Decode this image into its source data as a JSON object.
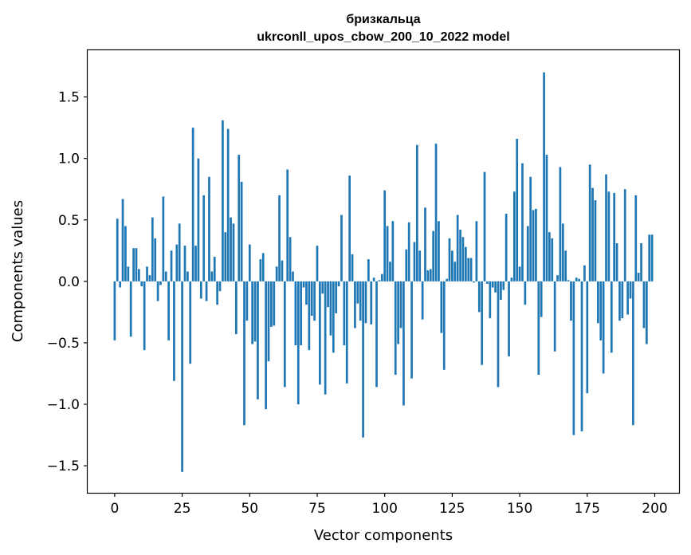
{
  "chart_data": {
    "type": "bar",
    "title_line1": "бризкальца",
    "title_line2": "ukrconll_upos_cbow_200_10_2022 model",
    "xlabel": "Vector components",
    "ylabel": "Components values",
    "xlim": [
      -10,
      209
    ],
    "ylim": [
      -1.72,
      1.88
    ],
    "xticks": [
      0,
      25,
      50,
      75,
      100,
      125,
      150,
      175,
      200
    ],
    "xtick_labels": [
      "0",
      "25",
      "50",
      "75",
      "100",
      "125",
      "150",
      "175",
      "200"
    ],
    "yticks": [
      -1.5,
      -1.0,
      -0.5,
      0.0,
      0.5,
      1.0,
      1.5
    ],
    "ytick_labels": [
      "−1.5",
      "−1.0",
      "−0.5",
      "0.0",
      "0.5",
      "1.0",
      "1.5"
    ],
    "bar_color": "#1f77b4",
    "values": [
      -0.48,
      0.51,
      -0.05,
      0.67,
      0.45,
      0.12,
      -0.45,
      0.27,
      0.27,
      0.1,
      -0.04,
      -0.56,
      0.12,
      0.05,
      0.52,
      0.35,
      -0.16,
      -0.03,
      0.69,
      0.08,
      -0.48,
      0.25,
      -0.81,
      0.3,
      0.47,
      -1.55,
      0.29,
      0.08,
      -0.67,
      1.25,
      0.29,
      1.0,
      -0.14,
      0.7,
      -0.16,
      0.85,
      0.08,
      0.2,
      -0.19,
      -0.08,
      1.31,
      0.4,
      1.24,
      0.52,
      0.47,
      -0.43,
      1.03,
      0.81,
      -1.17,
      -0.32,
      0.3,
      -0.51,
      -0.49,
      -0.96,
      0.18,
      0.23,
      -1.04,
      -0.65,
      -0.37,
      -0.36,
      0.12,
      0.7,
      0.17,
      -0.86,
      0.91,
      0.36,
      0.08,
      -0.52,
      -1.0,
      -0.52,
      -0.05,
      -0.19,
      -0.56,
      -0.28,
      -0.32,
      0.29,
      -0.84,
      -0.1,
      -0.92,
      -0.21,
      -0.44,
      -0.58,
      -0.26,
      -0.04,
      0.54,
      -0.52,
      -0.83,
      0.86,
      0.22,
      -0.38,
      -0.18,
      -0.32,
      -1.27,
      -0.34,
      0.18,
      -0.35,
      0.03,
      -0.86,
      0.01,
      0.06,
      0.74,
      0.45,
      0.16,
      0.49,
      -0.76,
      -0.51,
      -0.38,
      -1.01,
      0.26,
      0.48,
      -0.79,
      0.32,
      1.11,
      0.25,
      -0.31,
      0.6,
      0.09,
      0.1,
      0.41,
      1.12,
      0.49,
      -0.42,
      -0.72,
      0.02,
      0.35,
      0.25,
      0.16,
      0.54,
      0.42,
      0.36,
      0.28,
      0.19,
      0.19,
      -0.01,
      0.49,
      -0.25,
      -0.68,
      0.89,
      -0.02,
      -0.3,
      -0.05,
      -0.09,
      -0.86,
      -0.15,
      -0.07,
      0.55,
      -0.61,
      0.03,
      0.73,
      1.16,
      0.12,
      0.96,
      -0.19,
      0.45,
      0.85,
      0.58,
      0.59,
      -0.76,
      -0.29,
      1.7,
      1.03,
      0.4,
      0.35,
      -0.57,
      0.05,
      0.93,
      0.47,
      0.25,
      0.01,
      -0.32,
      -1.25,
      0.03,
      0.02,
      -1.22,
      0.13,
      -0.91,
      0.95,
      0.76,
      0.66,
      -0.34,
      -0.48,
      -0.75,
      0.87,
      0.73,
      -0.58,
      0.72,
      0.31,
      -0.32,
      -0.3,
      0.75,
      -0.27,
      -0.14,
      -1.17,
      0.7,
      0.07,
      0.31,
      -0.38,
      -0.51,
      0.38,
      0.38
    ]
  }
}
